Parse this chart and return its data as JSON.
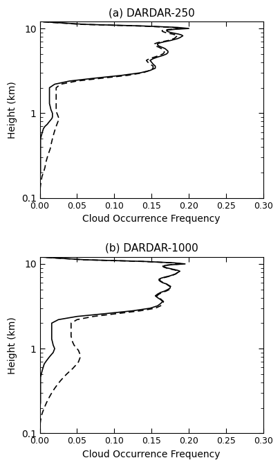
{
  "title_a": "(a) DARDAR-250",
  "title_b": "(b) DARDAR-1000",
  "xlabel": "Cloud Occurrence Frequency",
  "ylabel": "Height (km)",
  "xlim": [
    0.0,
    0.3
  ],
  "ylim": [
    0.1,
    12.0
  ],
  "xticks": [
    0.0,
    0.05,
    0.1,
    0.15,
    0.2,
    0.25,
    0.3
  ],
  "xtick_labels": [
    "0.00",
    "0.05",
    "0.10",
    "0.15",
    "0.20",
    "0.25",
    "0.30"
  ],
  "line_color": "#000000",
  "linewidth": 1.2,
  "panel_a_solid_heights": [
    0.1,
    0.12,
    0.14,
    0.16,
    0.18,
    0.2,
    0.23,
    0.26,
    0.3,
    0.34,
    0.38,
    0.42,
    0.46,
    0.5,
    0.54,
    0.58,
    0.62,
    0.66,
    0.7,
    0.74,
    0.78,
    0.82,
    0.86,
    0.9,
    0.95,
    1.0,
    1.05,
    1.1,
    1.2,
    1.3,
    1.4,
    1.5,
    1.6,
    1.7,
    1.8,
    1.9,
    2.0,
    2.2,
    2.4,
    2.6,
    2.8,
    3.0,
    3.2,
    3.4,
    3.6,
    3.8,
    4.0,
    4.2,
    4.4,
    4.6,
    4.8,
    5.0,
    5.2,
    5.4,
    5.6,
    5.8,
    6.0,
    6.2,
    6.4,
    6.6,
    6.8,
    7.0,
    7.2,
    7.4,
    7.6,
    7.8,
    8.0,
    8.2,
    8.4,
    8.6,
    8.8,
    9.0,
    9.2,
    9.4,
    9.6,
    9.8,
    10.0,
    10.3,
    10.7,
    11.2,
    12.0
  ],
  "panel_a_solid_values": [
    0.0,
    0.0,
    0.0,
    0.0,
    0.0,
    0.001,
    0.001,
    0.001,
    0.001,
    0.001,
    0.001,
    0.001,
    0.001,
    0.001,
    0.002,
    0.003,
    0.004,
    0.005,
    0.007,
    0.01,
    0.012,
    0.014,
    0.016,
    0.017,
    0.017,
    0.017,
    0.016,
    0.015,
    0.014,
    0.013,
    0.013,
    0.013,
    0.013,
    0.013,
    0.013,
    0.013,
    0.013,
    0.02,
    0.04,
    0.075,
    0.11,
    0.135,
    0.148,
    0.155,
    0.155,
    0.152,
    0.15,
    0.148,
    0.152,
    0.158,
    0.165,
    0.17,
    0.172,
    0.172,
    0.17,
    0.168,
    0.164,
    0.16,
    0.158,
    0.158,
    0.162,
    0.168,
    0.175,
    0.18,
    0.185,
    0.188,
    0.19,
    0.192,
    0.19,
    0.186,
    0.18,
    0.175,
    0.172,
    0.17,
    0.172,
    0.182,
    0.2,
    0.185,
    0.14,
    0.06,
    0.005
  ],
  "panel_a_dashed_heights": [
    0.1,
    0.12,
    0.14,
    0.16,
    0.18,
    0.2,
    0.23,
    0.26,
    0.3,
    0.34,
    0.38,
    0.42,
    0.46,
    0.5,
    0.54,
    0.58,
    0.62,
    0.66,
    0.7,
    0.74,
    0.78,
    0.82,
    0.86,
    0.9,
    0.95,
    1.0,
    1.05,
    1.1,
    1.2,
    1.3,
    1.4,
    1.5,
    1.6,
    1.7,
    1.8,
    1.9,
    2.0,
    2.2,
    2.4,
    2.6,
    2.8,
    3.0,
    3.2,
    3.4,
    3.6,
    3.8,
    4.0,
    4.2,
    4.4,
    4.6,
    4.8,
    5.0,
    5.2,
    5.4,
    5.6,
    5.8,
    6.0,
    6.2,
    6.4,
    6.6,
    6.8,
    7.0,
    7.2,
    7.4,
    7.6,
    7.8,
    8.0,
    8.2,
    8.4,
    8.6,
    8.8,
    9.0,
    9.2,
    9.4,
    9.6,
    9.8,
    10.0,
    10.3,
    10.7,
    11.2,
    12.0
  ],
  "panel_a_dashed_values": [
    0.0,
    0.0,
    0.001,
    0.002,
    0.003,
    0.005,
    0.007,
    0.008,
    0.01,
    0.012,
    0.014,
    0.015,
    0.016,
    0.017,
    0.018,
    0.019,
    0.02,
    0.021,
    0.022,
    0.023,
    0.024,
    0.025,
    0.026,
    0.025,
    0.024,
    0.023,
    0.022,
    0.022,
    0.022,
    0.022,
    0.022,
    0.022,
    0.022,
    0.022,
    0.022,
    0.022,
    0.022,
    0.028,
    0.05,
    0.085,
    0.118,
    0.138,
    0.148,
    0.152,
    0.152,
    0.148,
    0.145,
    0.143,
    0.147,
    0.154,
    0.16,
    0.165,
    0.167,
    0.167,
    0.165,
    0.163,
    0.16,
    0.156,
    0.154,
    0.154,
    0.158,
    0.165,
    0.172,
    0.176,
    0.18,
    0.182,
    0.183,
    0.185,
    0.182,
    0.178,
    0.172,
    0.168,
    0.165,
    0.164,
    0.166,
    0.176,
    0.19,
    0.178,
    0.135,
    0.055,
    0.004
  ],
  "panel_b_solid_heights": [
    0.1,
    0.12,
    0.14,
    0.16,
    0.18,
    0.2,
    0.23,
    0.26,
    0.3,
    0.34,
    0.38,
    0.42,
    0.46,
    0.5,
    0.54,
    0.58,
    0.62,
    0.66,
    0.7,
    0.74,
    0.78,
    0.82,
    0.86,
    0.9,
    0.95,
    1.0,
    1.05,
    1.1,
    1.2,
    1.3,
    1.4,
    1.5,
    1.6,
    1.7,
    1.8,
    1.9,
    2.0,
    2.2,
    2.4,
    2.6,
    2.8,
    3.0,
    3.2,
    3.4,
    3.6,
    3.8,
    4.0,
    4.2,
    4.4,
    4.6,
    4.8,
    5.0,
    5.2,
    5.4,
    5.6,
    5.8,
    6.0,
    6.2,
    6.4,
    6.6,
    6.8,
    7.0,
    7.2,
    7.4,
    7.6,
    7.8,
    8.0,
    8.2,
    8.4,
    8.6,
    8.8,
    9.0,
    9.2,
    9.4,
    9.6,
    9.8,
    10.0,
    10.3,
    10.7,
    11.2,
    12.0
  ],
  "panel_b_solid_values": [
    0.0,
    0.0,
    0.0,
    0.0,
    0.0,
    0.0,
    0.001,
    0.001,
    0.001,
    0.001,
    0.001,
    0.001,
    0.001,
    0.002,
    0.003,
    0.004,
    0.005,
    0.006,
    0.008,
    0.01,
    0.012,
    0.014,
    0.016,
    0.018,
    0.019,
    0.02,
    0.019,
    0.018,
    0.017,
    0.016,
    0.016,
    0.016,
    0.016,
    0.016,
    0.016,
    0.016,
    0.016,
    0.025,
    0.05,
    0.09,
    0.125,
    0.148,
    0.158,
    0.162,
    0.165,
    0.162,
    0.158,
    0.155,
    0.158,
    0.162,
    0.168,
    0.172,
    0.175,
    0.175,
    0.172,
    0.17,
    0.165,
    0.162,
    0.16,
    0.16,
    0.163,
    0.168,
    0.174,
    0.178,
    0.182,
    0.184,
    0.186,
    0.188,
    0.185,
    0.18,
    0.175,
    0.17,
    0.168,
    0.166,
    0.168,
    0.178,
    0.195,
    0.18,
    0.14,
    0.06,
    0.005
  ],
  "panel_b_dashed_heights": [
    0.1,
    0.12,
    0.14,
    0.16,
    0.18,
    0.2,
    0.23,
    0.26,
    0.3,
    0.34,
    0.38,
    0.42,
    0.46,
    0.5,
    0.54,
    0.58,
    0.62,
    0.66,
    0.7,
    0.74,
    0.78,
    0.82,
    0.86,
    0.9,
    0.95,
    1.0,
    1.05,
    1.1,
    1.2,
    1.3,
    1.4,
    1.5,
    1.6,
    1.7,
    1.8,
    1.9,
    2.0,
    2.2,
    2.4,
    2.6,
    2.8,
    3.0,
    3.2,
    3.4,
    3.6,
    3.8,
    4.0,
    4.2,
    4.4,
    4.6,
    4.8,
    5.0,
    5.2,
    5.4,
    5.6,
    5.8,
    6.0,
    6.2,
    6.4,
    6.6,
    6.8,
    7.0,
    7.2,
    7.4,
    7.6,
    7.8,
    8.0,
    8.2,
    8.4,
    8.6,
    8.8,
    9.0,
    9.2,
    9.4,
    9.6,
    9.8,
    10.0,
    10.3,
    10.7,
    11.2,
    12.0
  ],
  "panel_b_dashed_values": [
    0.0,
    0.0,
    0.001,
    0.002,
    0.004,
    0.006,
    0.009,
    0.012,
    0.016,
    0.02,
    0.024,
    0.028,
    0.032,
    0.036,
    0.04,
    0.044,
    0.047,
    0.05,
    0.052,
    0.053,
    0.054,
    0.054,
    0.054,
    0.053,
    0.052,
    0.05,
    0.048,
    0.046,
    0.044,
    0.043,
    0.042,
    0.042,
    0.042,
    0.042,
    0.042,
    0.042,
    0.042,
    0.05,
    0.072,
    0.105,
    0.135,
    0.155,
    0.162,
    0.165,
    0.166,
    0.163,
    0.16,
    0.157,
    0.16,
    0.164,
    0.17,
    0.174,
    0.176,
    0.176,
    0.173,
    0.17,
    0.166,
    0.163,
    0.161,
    0.161,
    0.164,
    0.17,
    0.175,
    0.179,
    0.182,
    0.184,
    0.185,
    0.186,
    0.183,
    0.178,
    0.173,
    0.169,
    0.166,
    0.165,
    0.167,
    0.176,
    0.192,
    0.178,
    0.138,
    0.058,
    0.004
  ]
}
